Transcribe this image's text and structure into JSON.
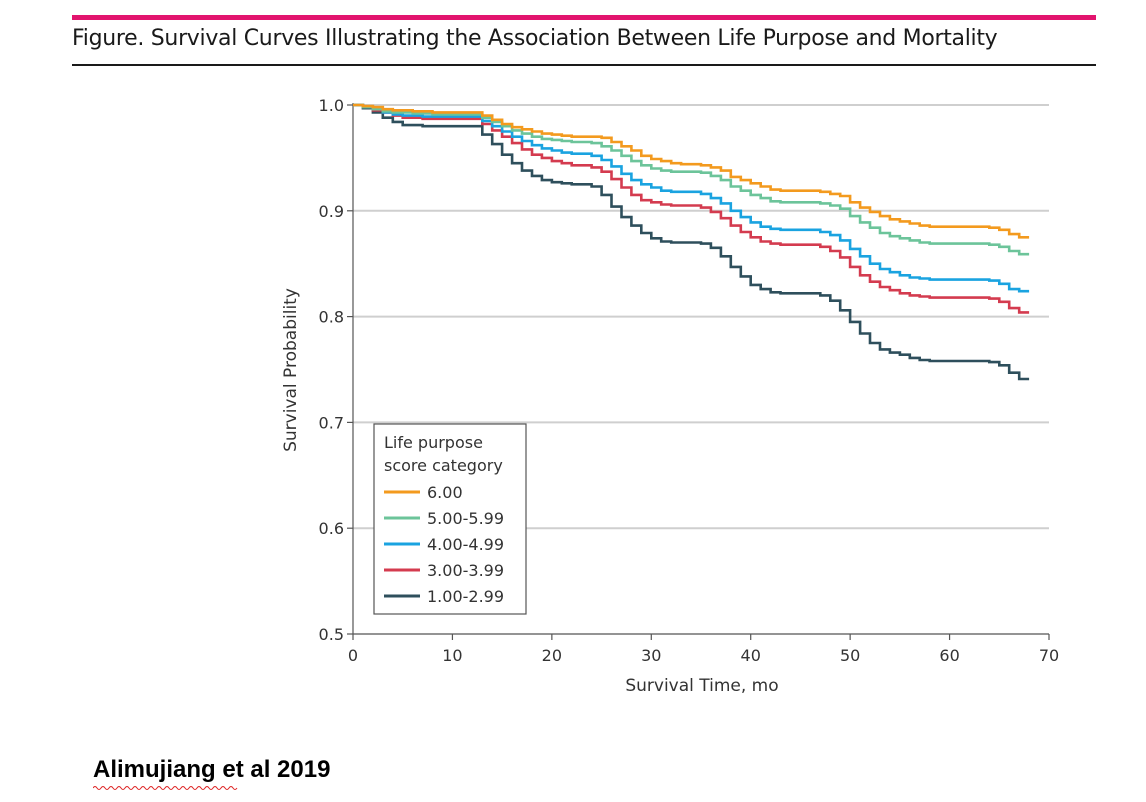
{
  "figure": {
    "title": "Figure. Survival Curves Illustrating the Association Between Life Purpose and Mortality",
    "accent_color": "#e2146e"
  },
  "credit": "Alimujiang et al 2019",
  "chart_data": {
    "type": "line",
    "step": true,
    "title": "",
    "xlabel": "Survival Time, mo",
    "ylabel": "Survival Probability",
    "xlim": [
      0,
      70
    ],
    "ylim": [
      0.5,
      1.0
    ],
    "xticks": [
      "0",
      "10",
      "20",
      "30",
      "40",
      "50",
      "60",
      "70"
    ],
    "yticks": [
      "0.5",
      "0.6",
      "0.7",
      "0.8",
      "0.9",
      "1.0"
    ],
    "grid": "horizontal",
    "legend": {
      "title_lines": [
        "Life purpose",
        "score category"
      ],
      "placement": "bottom-left"
    },
    "series": [
      {
        "name": "6.00",
        "color": "#f39a1e",
        "points": [
          [
            0,
            1.0
          ],
          [
            1,
            0.999
          ],
          [
            2,
            0.998
          ],
          [
            3,
            0.996
          ],
          [
            4,
            0.995
          ],
          [
            6,
            0.994
          ],
          [
            8,
            0.993
          ],
          [
            12,
            0.993
          ],
          [
            13,
            0.99
          ],
          [
            14,
            0.986
          ],
          [
            15,
            0.982
          ],
          [
            16,
            0.979
          ],
          [
            17,
            0.977
          ],
          [
            18,
            0.975
          ],
          [
            19,
            0.973
          ],
          [
            20,
            0.972
          ],
          [
            21,
            0.971
          ],
          [
            22,
            0.97
          ],
          [
            25,
            0.969
          ],
          [
            26,
            0.965
          ],
          [
            27,
            0.961
          ],
          [
            28,
            0.957
          ],
          [
            29,
            0.952
          ],
          [
            30,
            0.949
          ],
          [
            31,
            0.947
          ],
          [
            32,
            0.945
          ],
          [
            33,
            0.944
          ],
          [
            35,
            0.943
          ],
          [
            36,
            0.941
          ],
          [
            37,
            0.938
          ],
          [
            38,
            0.932
          ],
          [
            39,
            0.929
          ],
          [
            40,
            0.926
          ],
          [
            41,
            0.923
          ],
          [
            42,
            0.92
          ],
          [
            43,
            0.919
          ],
          [
            47,
            0.918
          ],
          [
            48,
            0.916
          ],
          [
            49,
            0.914
          ],
          [
            50,
            0.908
          ],
          [
            51,
            0.903
          ],
          [
            52,
            0.899
          ],
          [
            53,
            0.895
          ],
          [
            54,
            0.892
          ],
          [
            55,
            0.89
          ],
          [
            56,
            0.888
          ],
          [
            57,
            0.886
          ],
          [
            58,
            0.885
          ],
          [
            64,
            0.884
          ],
          [
            65,
            0.882
          ],
          [
            66,
            0.878
          ],
          [
            67,
            0.875
          ],
          [
            68,
            0.875
          ]
        ]
      },
      {
        "name": "5.00-5.99",
        "color": "#6cc49a",
        "points": [
          [
            0,
            1.0
          ],
          [
            1,
            0.998
          ],
          [
            2,
            0.996
          ],
          [
            3,
            0.994
          ],
          [
            4,
            0.993
          ],
          [
            6,
            0.992
          ],
          [
            8,
            0.991
          ],
          [
            12,
            0.991
          ],
          [
            13,
            0.988
          ],
          [
            14,
            0.984
          ],
          [
            15,
            0.98
          ],
          [
            16,
            0.976
          ],
          [
            17,
            0.973
          ],
          [
            18,
            0.97
          ],
          [
            19,
            0.968
          ],
          [
            20,
            0.967
          ],
          [
            21,
            0.966
          ],
          [
            22,
            0.965
          ],
          [
            24,
            0.964
          ],
          [
            25,
            0.961
          ],
          [
            26,
            0.957
          ],
          [
            27,
            0.952
          ],
          [
            28,
            0.947
          ],
          [
            29,
            0.943
          ],
          [
            30,
            0.94
          ],
          [
            31,
            0.938
          ],
          [
            32,
            0.937
          ],
          [
            35,
            0.936
          ],
          [
            36,
            0.933
          ],
          [
            37,
            0.929
          ],
          [
            38,
            0.923
          ],
          [
            39,
            0.919
          ],
          [
            40,
            0.915
          ],
          [
            41,
            0.912
          ],
          [
            42,
            0.909
          ],
          [
            43,
            0.908
          ],
          [
            47,
            0.907
          ],
          [
            48,
            0.905
          ],
          [
            49,
            0.902
          ],
          [
            50,
            0.895
          ],
          [
            51,
            0.889
          ],
          [
            52,
            0.884
          ],
          [
            53,
            0.879
          ],
          [
            54,
            0.876
          ],
          [
            55,
            0.874
          ],
          [
            56,
            0.872
          ],
          [
            57,
            0.87
          ],
          [
            58,
            0.869
          ],
          [
            64,
            0.868
          ],
          [
            65,
            0.866
          ],
          [
            66,
            0.862
          ],
          [
            67,
            0.859
          ],
          [
            68,
            0.859
          ]
        ]
      },
      {
        "name": "4.00-4.99",
        "color": "#1aa3e0",
        "points": [
          [
            0,
            1.0
          ],
          [
            1,
            0.998
          ],
          [
            2,
            0.996
          ],
          [
            3,
            0.993
          ],
          [
            4,
            0.991
          ],
          [
            5,
            0.99
          ],
          [
            7,
            0.989
          ],
          [
            12,
            0.989
          ],
          [
            13,
            0.985
          ],
          [
            14,
            0.98
          ],
          [
            15,
            0.975
          ],
          [
            16,
            0.97
          ],
          [
            17,
            0.966
          ],
          [
            18,
            0.962
          ],
          [
            19,
            0.959
          ],
          [
            20,
            0.957
          ],
          [
            21,
            0.955
          ],
          [
            22,
            0.954
          ],
          [
            24,
            0.952
          ],
          [
            25,
            0.948
          ],
          [
            26,
            0.942
          ],
          [
            27,
            0.935
          ],
          [
            28,
            0.929
          ],
          [
            29,
            0.925
          ],
          [
            30,
            0.922
          ],
          [
            31,
            0.919
          ],
          [
            32,
            0.918
          ],
          [
            35,
            0.916
          ],
          [
            36,
            0.912
          ],
          [
            37,
            0.907
          ],
          [
            38,
            0.9
          ],
          [
            39,
            0.894
          ],
          [
            40,
            0.889
          ],
          [
            41,
            0.885
          ],
          [
            42,
            0.883
          ],
          [
            43,
            0.882
          ],
          [
            47,
            0.88
          ],
          [
            48,
            0.877
          ],
          [
            49,
            0.872
          ],
          [
            50,
            0.864
          ],
          [
            51,
            0.857
          ],
          [
            52,
            0.85
          ],
          [
            53,
            0.845
          ],
          [
            54,
            0.842
          ],
          [
            55,
            0.839
          ],
          [
            56,
            0.837
          ],
          [
            57,
            0.836
          ],
          [
            58,
            0.835
          ],
          [
            64,
            0.834
          ],
          [
            65,
            0.831
          ],
          [
            66,
            0.826
          ],
          [
            67,
            0.824
          ],
          [
            68,
            0.824
          ]
        ]
      },
      {
        "name": "3.00-3.99",
        "color": "#d43b4f",
        "points": [
          [
            0,
            1.0
          ],
          [
            1,
            0.998
          ],
          [
            2,
            0.995
          ],
          [
            3,
            0.993
          ],
          [
            4,
            0.99
          ],
          [
            5,
            0.988
          ],
          [
            7,
            0.987
          ],
          [
            12,
            0.987
          ],
          [
            13,
            0.982
          ],
          [
            14,
            0.976
          ],
          [
            15,
            0.97
          ],
          [
            16,
            0.964
          ],
          [
            17,
            0.958
          ],
          [
            18,
            0.953
          ],
          [
            19,
            0.95
          ],
          [
            20,
            0.947
          ],
          [
            21,
            0.945
          ],
          [
            22,
            0.943
          ],
          [
            24,
            0.941
          ],
          [
            25,
            0.937
          ],
          [
            26,
            0.93
          ],
          [
            27,
            0.922
          ],
          [
            28,
            0.915
          ],
          [
            29,
            0.91
          ],
          [
            30,
            0.908
          ],
          [
            31,
            0.906
          ],
          [
            32,
            0.905
          ],
          [
            35,
            0.903
          ],
          [
            36,
            0.899
          ],
          [
            37,
            0.893
          ],
          [
            38,
            0.886
          ],
          [
            39,
            0.88
          ],
          [
            40,
            0.875
          ],
          [
            41,
            0.871
          ],
          [
            42,
            0.869
          ],
          [
            43,
            0.868
          ],
          [
            47,
            0.866
          ],
          [
            48,
            0.862
          ],
          [
            49,
            0.856
          ],
          [
            50,
            0.847
          ],
          [
            51,
            0.839
          ],
          [
            52,
            0.833
          ],
          [
            53,
            0.828
          ],
          [
            54,
            0.825
          ],
          [
            55,
            0.822
          ],
          [
            56,
            0.82
          ],
          [
            57,
            0.819
          ],
          [
            58,
            0.818
          ],
          [
            64,
            0.817
          ],
          [
            65,
            0.814
          ],
          [
            66,
            0.808
          ],
          [
            67,
            0.804
          ],
          [
            68,
            0.804
          ]
        ]
      },
      {
        "name": "1.00-2.99",
        "color": "#2e4f5c",
        "points": [
          [
            0,
            1.0
          ],
          [
            1,
            0.997
          ],
          [
            2,
            0.993
          ],
          [
            3,
            0.988
          ],
          [
            4,
            0.984
          ],
          [
            5,
            0.981
          ],
          [
            7,
            0.98
          ],
          [
            12,
            0.98
          ],
          [
            13,
            0.972
          ],
          [
            14,
            0.963
          ],
          [
            15,
            0.953
          ],
          [
            16,
            0.945
          ],
          [
            17,
            0.938
          ],
          [
            18,
            0.933
          ],
          [
            19,
            0.929
          ],
          [
            20,
            0.927
          ],
          [
            21,
            0.926
          ],
          [
            22,
            0.925
          ],
          [
            24,
            0.923
          ],
          [
            25,
            0.915
          ],
          [
            26,
            0.904
          ],
          [
            27,
            0.894
          ],
          [
            28,
            0.886
          ],
          [
            29,
            0.879
          ],
          [
            30,
            0.874
          ],
          [
            31,
            0.871
          ],
          [
            32,
            0.87
          ],
          [
            35,
            0.869
          ],
          [
            36,
            0.865
          ],
          [
            37,
            0.857
          ],
          [
            38,
            0.847
          ],
          [
            39,
            0.838
          ],
          [
            40,
            0.83
          ],
          [
            41,
            0.826
          ],
          [
            42,
            0.823
          ],
          [
            43,
            0.822
          ],
          [
            47,
            0.82
          ],
          [
            48,
            0.815
          ],
          [
            49,
            0.806
          ],
          [
            50,
            0.795
          ],
          [
            51,
            0.784
          ],
          [
            52,
            0.775
          ],
          [
            53,
            0.769
          ],
          [
            54,
            0.766
          ],
          [
            55,
            0.764
          ],
          [
            56,
            0.761
          ],
          [
            57,
            0.759
          ],
          [
            58,
            0.758
          ],
          [
            64,
            0.757
          ],
          [
            65,
            0.754
          ],
          [
            66,
            0.747
          ],
          [
            67,
            0.741
          ],
          [
            68,
            0.741
          ]
        ]
      }
    ]
  }
}
